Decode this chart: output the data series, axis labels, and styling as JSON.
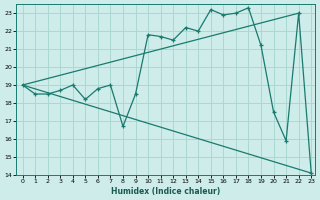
{
  "xlabel": "Humidex (Indice chaleur)",
  "bg_color": "#cdecea",
  "grid_color": "#aad8d0",
  "line_color": "#1a7a6e",
  "xlim": [
    -0.5,
    23.3
  ],
  "ylim": [
    14,
    23.5
  ],
  "yticks": [
    14,
    15,
    16,
    17,
    18,
    19,
    20,
    21,
    22,
    23
  ],
  "xticks": [
    0,
    1,
    2,
    3,
    4,
    5,
    6,
    7,
    8,
    9,
    10,
    11,
    12,
    13,
    14,
    15,
    16,
    17,
    18,
    19,
    20,
    21,
    22,
    23
  ],
  "series1_x": [
    0,
    1,
    2,
    3,
    4,
    5,
    6,
    7,
    8,
    9,
    10,
    11,
    12,
    13,
    14,
    15,
    16,
    17,
    18,
    19,
    20,
    21,
    22,
    23
  ],
  "series1_y": [
    19.0,
    18.5,
    18.5,
    18.7,
    19.0,
    18.2,
    18.8,
    19.0,
    16.7,
    18.5,
    21.8,
    21.7,
    21.5,
    22.2,
    22.0,
    23.2,
    22.9,
    23.0,
    23.3,
    21.2,
    17.5,
    15.9,
    23.0,
    14.1
  ],
  "series2_x": [
    0,
    22
  ],
  "series2_y": [
    19.0,
    23.0
  ],
  "series3_x": [
    0,
    23
  ],
  "series3_y": [
    19.0,
    14.1
  ]
}
